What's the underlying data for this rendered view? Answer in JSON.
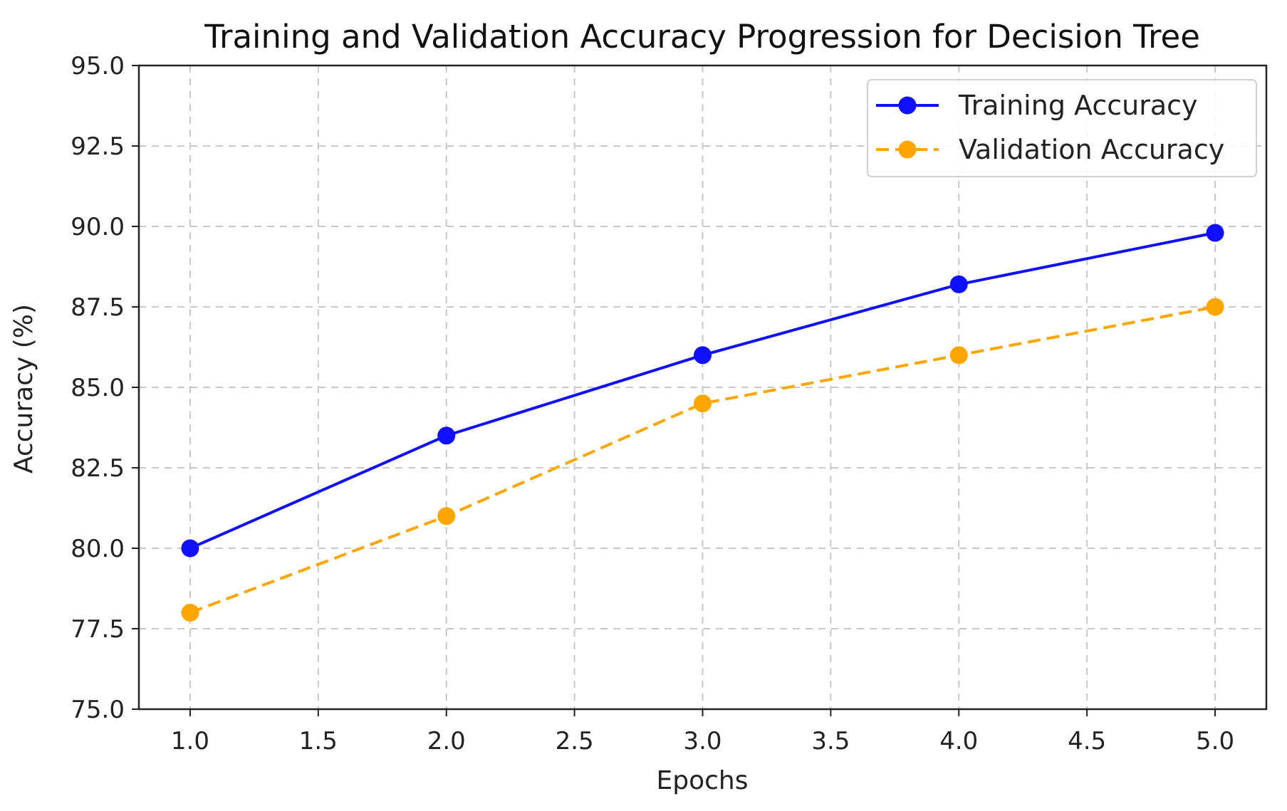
{
  "chart_data": {
    "type": "line",
    "title": "Training and Validation Accuracy Progression for Decision Tree",
    "xlabel": "Epochs",
    "ylabel": "Accuracy (%)",
    "xlim": [
      0.8,
      5.2
    ],
    "ylim": [
      75.0,
      95.0
    ],
    "xticks": [
      "1.0",
      "1.5",
      "2.0",
      "2.5",
      "3.0",
      "3.5",
      "4.0",
      "4.5",
      "5.0"
    ],
    "xtick_values": [
      1.0,
      1.5,
      2.0,
      2.5,
      3.0,
      3.5,
      4.0,
      4.5,
      5.0
    ],
    "yticks": [
      "75.0",
      "77.5",
      "80.0",
      "82.5",
      "85.0",
      "87.5",
      "90.0",
      "92.5",
      "95.0"
    ],
    "ytick_values": [
      75.0,
      77.5,
      80.0,
      82.5,
      85.0,
      87.5,
      90.0,
      92.5,
      95.0
    ],
    "grid": true,
    "legend_position": "top-right",
    "x": [
      1,
      2,
      3,
      4,
      5
    ],
    "series": [
      {
        "name": "Training Accuracy",
        "values": [
          80.0,
          83.5,
          86.0,
          88.2,
          89.8
        ],
        "color": "#1010ff",
        "style": "solid"
      },
      {
        "name": "Validation Accuracy",
        "values": [
          78.0,
          81.0,
          84.5,
          86.0,
          87.5
        ],
        "color": "#ffa500",
        "style": "dashed"
      }
    ]
  }
}
